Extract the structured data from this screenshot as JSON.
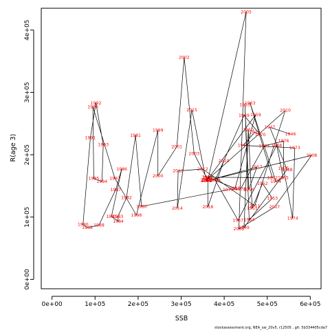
{
  "chart_data": {
    "type": "line",
    "xlabel": "SSB",
    "ylabel": "R(age 3)",
    "xlim": [
      -25000,
      625000
    ],
    "ylim": [
      -15000,
      435000
    ],
    "x_ticks": [
      {
        "value": 0,
        "label": "0e+00"
      },
      {
        "value": 100000,
        "label": "1e+05"
      },
      {
        "value": 200000,
        "label": "2e+05"
      },
      {
        "value": 300000,
        "label": "3e+05"
      },
      {
        "value": 400000,
        "label": "4e+05"
      },
      {
        "value": 500000,
        "label": "5e+05"
      },
      {
        "value": 600000,
        "label": "6e+05"
      }
    ],
    "y_ticks": [
      {
        "value": 0,
        "label": "0e+00"
      },
      {
        "value": 100000,
        "label": "1e+05"
      },
      {
        "value": 200000,
        "label": "2e+05"
      },
      {
        "value": 300000,
        "label": "3e+05"
      },
      {
        "value": 400000,
        "label": "4e+05"
      }
    ],
    "footer": "stockassessment.org,  NEA_sai_20v5,  r12505 ,  git: 5b334405cda7",
    "points": [
      {
        "year": "1946",
        "x": 554000,
        "y": 233000
      },
      {
        "year": "1947",
        "x": 506000,
        "y": 244000
      },
      {
        "year": "1948",
        "x": 546000,
        "y": 176000
      },
      {
        "year": "1949",
        "x": 446000,
        "y": 83000
      },
      {
        "year": "1950",
        "x": 456000,
        "y": 240000
      },
      {
        "year": "1951",
        "x": 465000,
        "y": 114000
      },
      {
        "year": "1952",
        "x": 489000,
        "y": 154000
      },
      {
        "year": "1953",
        "x": 512000,
        "y": 130000
      },
      {
        "year": "1954",
        "x": 458000,
        "y": 96000
      },
      {
        "year": "1955",
        "x": 448000,
        "y": 280000
      },
      {
        "year": "1956",
        "x": 457000,
        "y": 144000
      },
      {
        "year": "1957",
        "x": 476000,
        "y": 180000
      },
      {
        "year": "1958",
        "x": 359000,
        "y": 158000
      },
      {
        "year": "1959",
        "x": 473000,
        "y": 264000
      },
      {
        "year": "1960",
        "x": 425000,
        "y": 146000
      },
      {
        "year": "1961",
        "x": 361000,
        "y": 164000
      },
      {
        "year": "1962",
        "x": 512000,
        "y": 163000
      },
      {
        "year": "1963",
        "x": 460000,
        "y": 283000
      },
      {
        "year": "1964",
        "x": 520000,
        "y": 157000
      },
      {
        "year": "1965",
        "x": 537000,
        "y": 163000
      },
      {
        "year": "1966",
        "x": 522000,
        "y": 215000
      },
      {
        "year": "1967",
        "x": 432000,
        "y": 95000
      },
      {
        "year": "1968",
        "x": 379000,
        "y": 159000
      },
      {
        "year": "1969",
        "x": 446000,
        "y": 263000
      },
      {
        "year": "1970",
        "x": 484000,
        "y": 232000
      },
      {
        "year": "1971",
        "x": 471000,
        "y": 236000
      },
      {
        "year": "1972",
        "x": 444000,
        "y": 215000
      },
      {
        "year": "1973",
        "x": 564000,
        "y": 211000
      },
      {
        "year": "1974",
        "x": 559000,
        "y": 98000
      },
      {
        "year": "1975",
        "x": 538000,
        "y": 178000
      },
      {
        "year": "1976",
        "x": 538000,
        "y": 222000
      },
      {
        "year": "1977",
        "x": 493000,
        "y": 214000
      },
      {
        "year": "1978",
        "x": 438000,
        "y": 145000
      },
      {
        "year": "1979",
        "x": 409000,
        "y": 144000
      },
      {
        "year": "1980",
        "x": 208000,
        "y": 117000
      },
      {
        "year": "1981",
        "x": 194000,
        "y": 231000
      },
      {
        "year": "1982",
        "x": 173000,
        "y": 131000
      },
      {
        "year": "1983",
        "x": 153000,
        "y": 101000
      },
      {
        "year": "1984",
        "x": 154000,
        "y": 93000
      },
      {
        "year": "1985",
        "x": 138000,
        "y": 101000
      },
      {
        "year": "1986",
        "x": 162000,
        "y": 177000
      },
      {
        "year": "1987",
        "x": 148000,
        "y": 144000
      },
      {
        "year": "1988",
        "x": 109000,
        "y": 87000
      },
      {
        "year": "1989",
        "x": 82000,
        "y": 83000
      },
      {
        "year": "1990",
        "x": 72000,
        "y": 88000
      },
      {
        "year": "1991",
        "x": 89000,
        "y": 227000
      },
      {
        "year": "1992",
        "x": 102000,
        "y": 283000
      },
      {
        "year": "1993",
        "x": 119000,
        "y": 216000
      },
      {
        "year": "1994",
        "x": 116000,
        "y": 157000
      },
      {
        "year": "1995",
        "x": 97000,
        "y": 162000
      },
      {
        "year": "1996",
        "x": 95000,
        "y": 277000
      },
      {
        "year": "1997",
        "x": 146000,
        "y": 162000
      },
      {
        "year": "1998",
        "x": 196000,
        "y": 103000
      },
      {
        "year": "1999",
        "x": 246000,
        "y": 239000
      },
      {
        "year": "2000",
        "x": 246000,
        "y": 166000
      },
      {
        "year": "2001",
        "x": 290000,
        "y": 213000
      },
      {
        "year": "2002",
        "x": 307000,
        "y": 356000
      },
      {
        "year": "2003",
        "x": 330000,
        "y": 202000
      },
      {
        "year": "2004",
        "x": 362000,
        "y": 159000
      },
      {
        "year": "2005",
        "x": 451000,
        "y": 429000
      },
      {
        "year": "2006",
        "x": 434000,
        "y": 81000
      },
      {
        "year": "2007",
        "x": 517000,
        "y": 116000
      },
      {
        "year": "2008",
        "x": 603000,
        "y": 199000
      },
      {
        "year": "2009",
        "x": 358000,
        "y": 158000
      },
      {
        "year": "2010",
        "x": 542000,
        "y": 271000
      },
      {
        "year": "2011",
        "x": 471000,
        "y": 118000
      },
      {
        "year": "2012",
        "x": 350000,
        "y": 177000
      },
      {
        "year": "2013",
        "x": 293000,
        "y": 174000
      },
      {
        "year": "2014",
        "x": 291000,
        "y": 114000
      },
      {
        "year": "2015",
        "x": 325000,
        "y": 272000
      },
      {
        "year": "2016",
        "x": 358000,
        "y": 159000
      },
      {
        "year": "2017",
        "x": 362000,
        "y": 163000
      },
      {
        "year": "2018",
        "x": 362000,
        "y": 116000
      },
      {
        "year": "2019",
        "x": 399000,
        "y": 190000
      }
    ]
  }
}
